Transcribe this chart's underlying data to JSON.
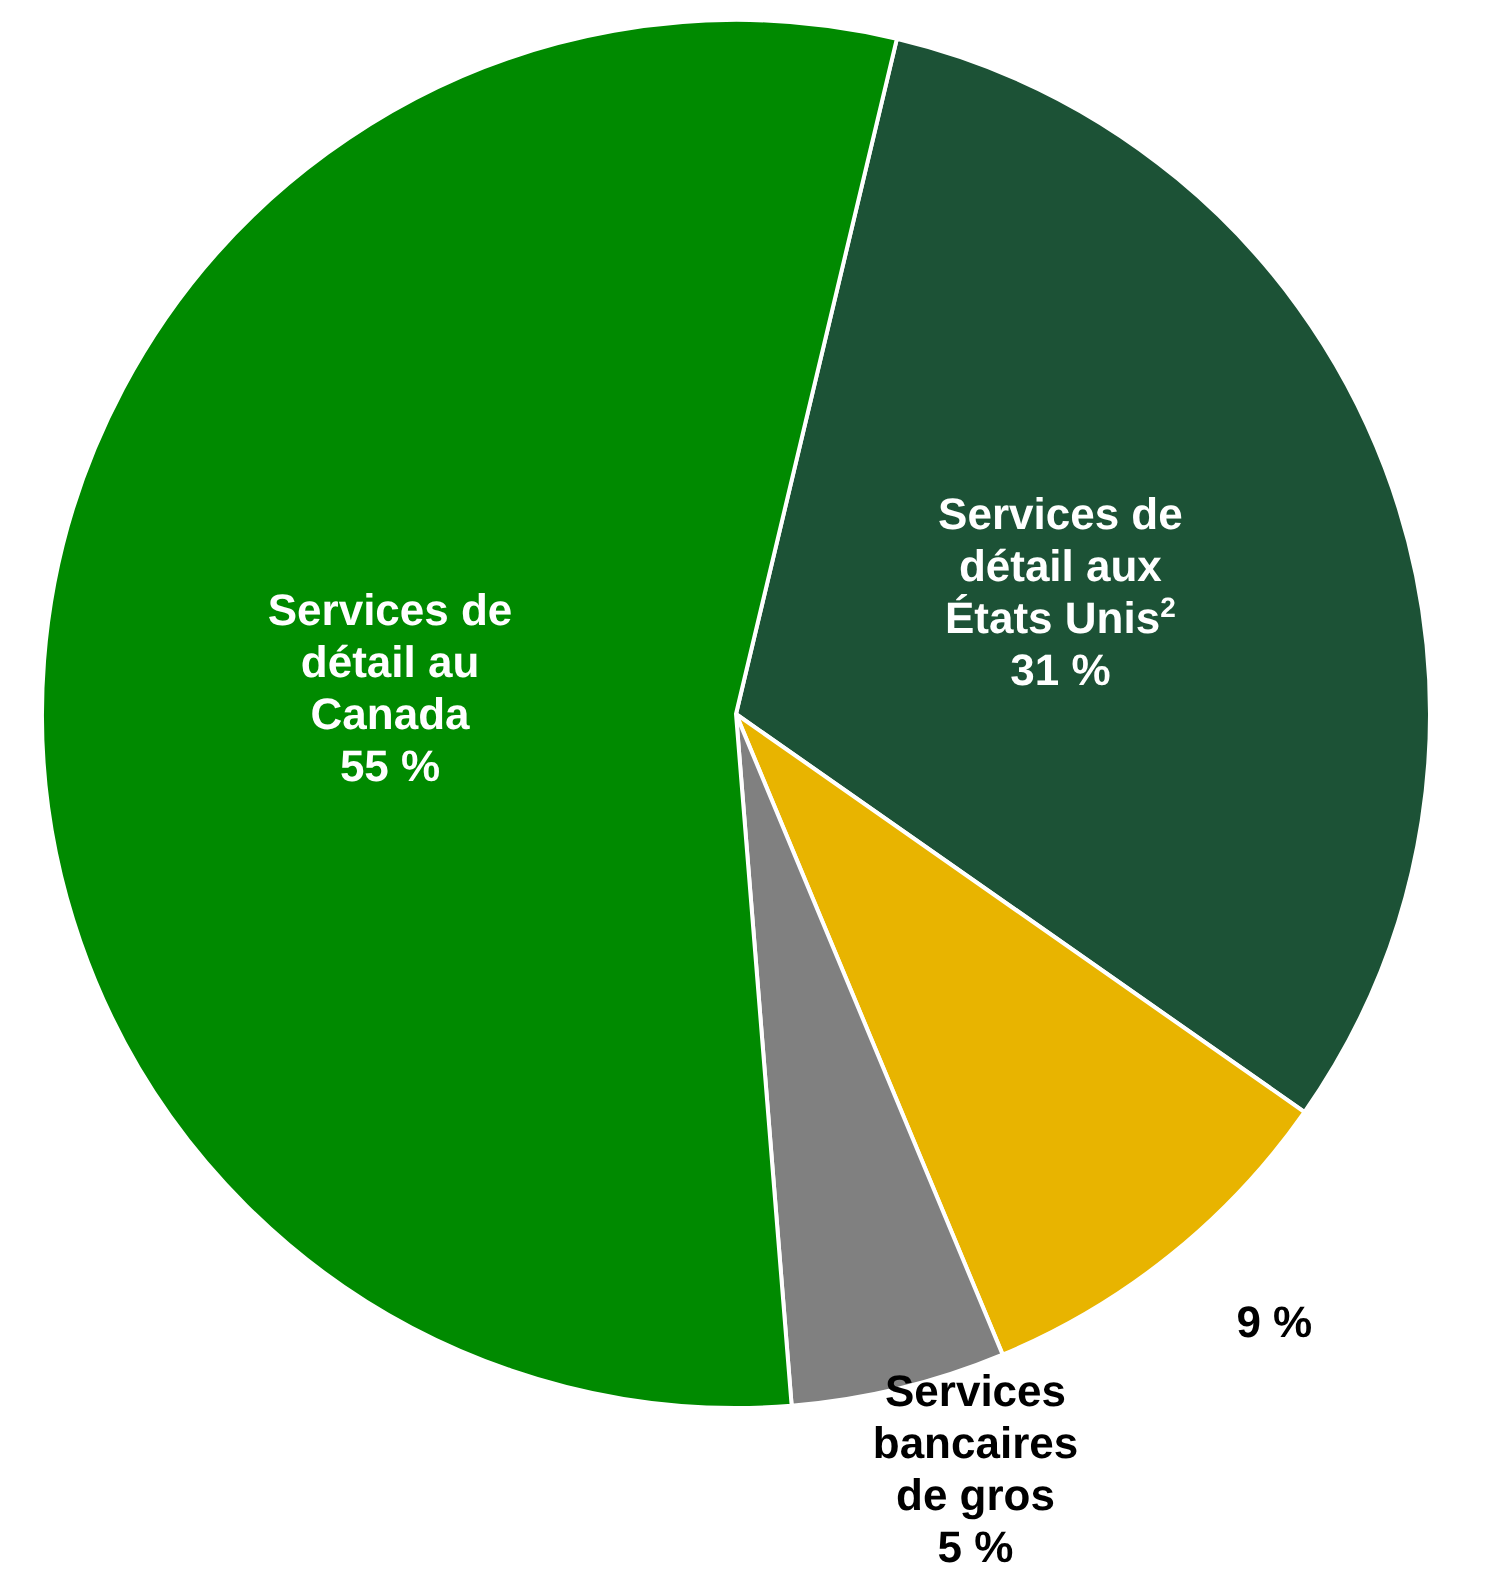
{
  "chart_data": {
    "type": "pie",
    "categories": [
      "Services de\ndétail aux\nÉtats Unis$^{2}$",
      null,
      "Services\nbancaires\nde gros",
      "Services de\ndétail au\nCanada"
    ],
    "values": [
      31,
      9,
      5,
      55
    ],
    "colors": [
      "#1c5236",
      "#e8b400",
      "#808080",
      "#008a00"
    ],
    "value_labels": [
      "31 %",
      "9 %",
      "5 %",
      "55 %"
    ]
  }
}
